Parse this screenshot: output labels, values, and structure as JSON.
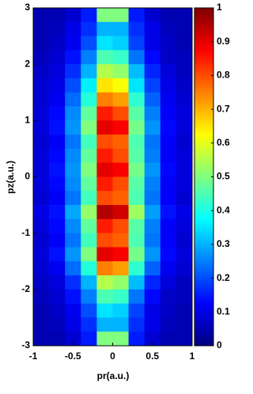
{
  "chart_data": {
    "type": "heatmap",
    "xlabel": "pr(a.u.)",
    "ylabel": "pz(a.u.)",
    "x": [
      -0.9,
      -0.7,
      -0.5,
      -0.3,
      -0.1,
      0.1,
      0.3,
      0.5,
      0.7,
      0.9
    ],
    "y": [
      2.875,
      2.625,
      2.375,
      2.125,
      1.875,
      1.625,
      1.375,
      1.125,
      0.875,
      0.625,
      0.375,
      0.125,
      -0.125,
      -0.375,
      -0.625,
      -0.875,
      -1.125,
      -1.375,
      -1.625,
      -1.875,
      -2.125,
      -2.375,
      -2.625,
      -2.875
    ],
    "z": [
      [
        0.05,
        0.05,
        0.08,
        0.15,
        0.5,
        0.5,
        0.15,
        0.08,
        0.05,
        0.05
      ],
      [
        0.05,
        0.06,
        0.1,
        0.17,
        0.3,
        0.3,
        0.17,
        0.1,
        0.06,
        0.05
      ],
      [
        0.05,
        0.07,
        0.11,
        0.2,
        0.35,
        0.33,
        0.19,
        0.1,
        0.07,
        0.05
      ],
      [
        0.06,
        0.08,
        0.14,
        0.25,
        0.45,
        0.43,
        0.24,
        0.13,
        0.07,
        0.06
      ],
      [
        0.07,
        0.09,
        0.17,
        0.3,
        0.55,
        0.52,
        0.31,
        0.16,
        0.09,
        0.06
      ],
      [
        0.08,
        0.1,
        0.2,
        0.36,
        0.65,
        0.62,
        0.35,
        0.19,
        0.1,
        0.07
      ],
      [
        0.08,
        0.11,
        0.23,
        0.41,
        0.75,
        0.72,
        0.42,
        0.22,
        0.11,
        0.08
      ],
      [
        0.09,
        0.13,
        0.26,
        0.47,
        0.85,
        0.8,
        0.46,
        0.25,
        0.12,
        0.09
      ],
      [
        0.09,
        0.14,
        0.27,
        0.5,
        0.9,
        0.88,
        0.49,
        0.27,
        0.13,
        0.09
      ],
      [
        0.08,
        0.12,
        0.24,
        0.44,
        0.8,
        0.78,
        0.45,
        0.24,
        0.12,
        0.08
      ],
      [
        0.09,
        0.13,
        0.26,
        0.47,
        0.85,
        0.8,
        0.46,
        0.25,
        0.12,
        0.09
      ],
      [
        0.09,
        0.14,
        0.27,
        0.5,
        0.9,
        0.88,
        0.49,
        0.27,
        0.13,
        0.09
      ],
      [
        0.09,
        0.13,
        0.26,
        0.47,
        0.85,
        0.8,
        0.46,
        0.25,
        0.12,
        0.09
      ],
      [
        0.08,
        0.12,
        0.24,
        0.44,
        0.8,
        0.78,
        0.45,
        0.24,
        0.12,
        0.08
      ],
      [
        0.1,
        0.14,
        0.29,
        0.52,
        0.95,
        0.92,
        0.53,
        0.28,
        0.14,
        0.1
      ],
      [
        0.09,
        0.13,
        0.26,
        0.47,
        0.85,
        0.8,
        0.46,
        0.25,
        0.12,
        0.09
      ],
      [
        0.08,
        0.12,
        0.24,
        0.44,
        0.8,
        0.78,
        0.45,
        0.24,
        0.12,
        0.08
      ],
      [
        0.09,
        0.14,
        0.27,
        0.5,
        0.9,
        0.88,
        0.49,
        0.27,
        0.13,
        0.09
      ],
      [
        0.08,
        0.11,
        0.23,
        0.41,
        0.75,
        0.72,
        0.42,
        0.22,
        0.11,
        0.08
      ],
      [
        0.07,
        0.09,
        0.17,
        0.3,
        0.55,
        0.52,
        0.31,
        0.16,
        0.09,
        0.06
      ],
      [
        0.06,
        0.08,
        0.14,
        0.25,
        0.45,
        0.43,
        0.24,
        0.13,
        0.07,
        0.06
      ],
      [
        0.05,
        0.07,
        0.11,
        0.2,
        0.35,
        0.33,
        0.19,
        0.1,
        0.07,
        0.05
      ],
      [
        0.05,
        0.06,
        0.1,
        0.17,
        0.3,
        0.3,
        0.17,
        0.1,
        0.06,
        0.05
      ],
      [
        0.05,
        0.05,
        0.08,
        0.15,
        0.5,
        0.5,
        0.15,
        0.08,
        0.05,
        0.05
      ]
    ],
    "xlim": [
      -1,
      1
    ],
    "ylim": [
      -3,
      3
    ],
    "xticks": [
      -1,
      -0.5,
      0,
      0.5,
      1
    ],
    "yticks": [
      -3,
      -2,
      -1,
      0,
      1,
      2,
      3
    ],
    "clim": [
      0,
      1
    ],
    "cticks": [
      0,
      0.1,
      0.2,
      0.3,
      0.4,
      0.5,
      0.6,
      0.7,
      0.8,
      0.9,
      1
    ],
    "colormap": "jet"
  }
}
